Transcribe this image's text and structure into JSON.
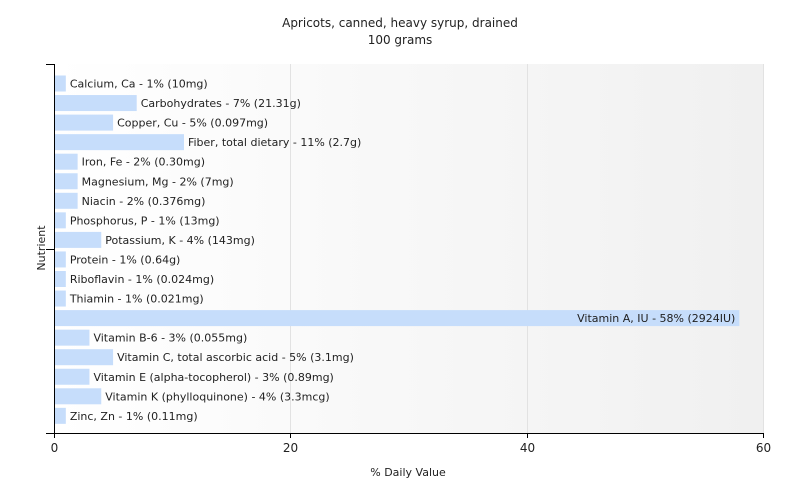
{
  "chart_data": {
    "type": "bar",
    "orientation": "horizontal",
    "title": "Apricots, canned, heavy syrup, drained",
    "subtitle": "100 grams",
    "xlabel": "% Daily Value",
    "ylabel": "Nutrient",
    "xlim": [
      0,
      60
    ],
    "xticks": [
      0,
      20,
      40,
      60
    ],
    "grid": true,
    "bar_color": "#c6ddfb",
    "categories": [
      "Calcium, Ca",
      "Carbohydrates",
      "Copper, Cu",
      "Fiber, total dietary",
      "Iron, Fe",
      "Magnesium, Mg",
      "Niacin",
      "Phosphorus, P",
      "Potassium, K",
      "Protein",
      "Riboflavin",
      "Thiamin",
      "Vitamin A, IU",
      "Vitamin B-6",
      "Vitamin C, total ascorbic acid",
      "Vitamin E (alpha-tocopherol)",
      "Vitamin K (phylloquinone)",
      "Zinc, Zn"
    ],
    "values": [
      1,
      7,
      5,
      11,
      2,
      2,
      2,
      1,
      4,
      1,
      1,
      1,
      58,
      3,
      5,
      3,
      4,
      1
    ],
    "labels": [
      "Calcium, Ca - 1% (10mg)",
      "Carbohydrates - 7% (21.31g)",
      "Copper, Cu - 5% (0.097mg)",
      "Fiber, total dietary - 11% (2.7g)",
      "Iron, Fe - 2% (0.30mg)",
      "Magnesium, Mg - 2% (7mg)",
      "Niacin - 2% (0.376mg)",
      "Phosphorus, P - 1% (13mg)",
      "Potassium, K - 4% (143mg)",
      "Protein - 1% (0.64g)",
      "Riboflavin - 1% (0.024mg)",
      "Thiamin - 1% (0.021mg)",
      "Vitamin A, IU - 58% (2924IU)",
      "Vitamin B-6 - 3% (0.055mg)",
      "Vitamin C, total ascorbic acid - 5% (3.1mg)",
      "Vitamin E (alpha-tocopherol) - 3% (0.89mg)",
      "Vitamin K (phylloquinone) - 4% (3.3mcg)",
      "Zinc, Zn - 1% (0.11mg)"
    ]
  }
}
